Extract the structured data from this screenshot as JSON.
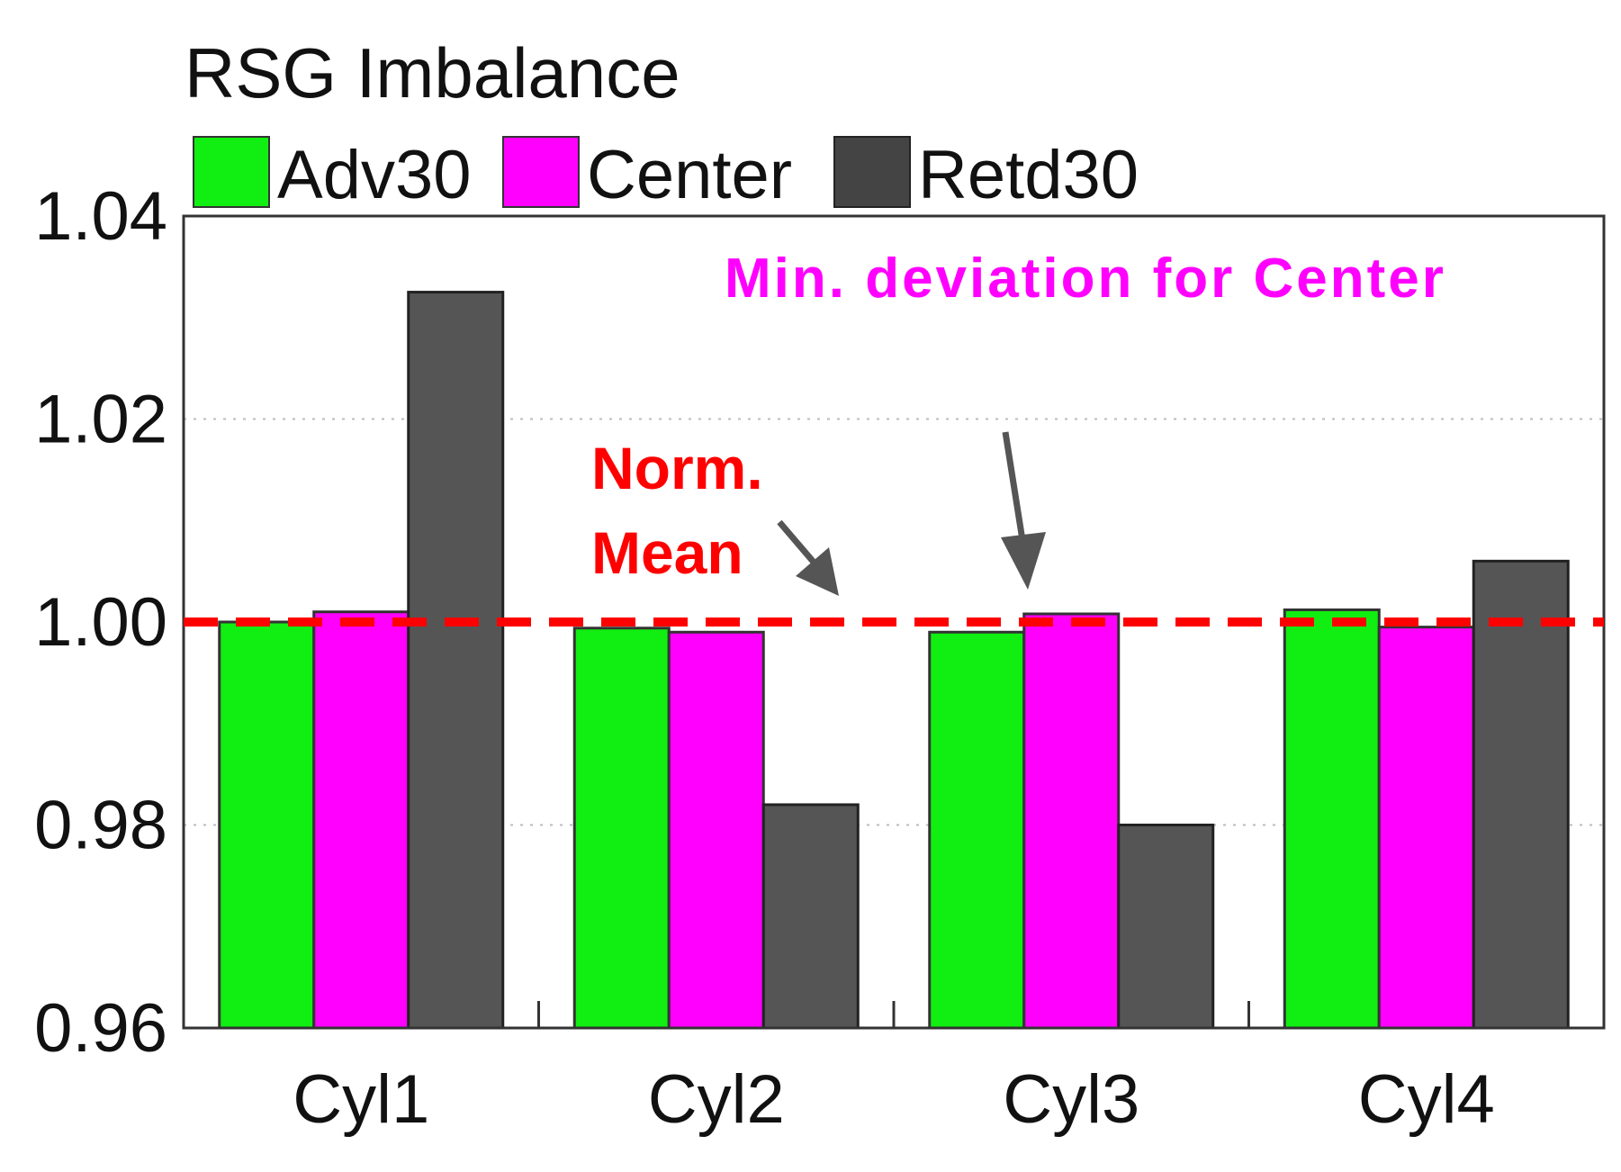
{
  "chart_data": {
    "type": "bar",
    "title": "RSG Imbalance",
    "categories": [
      "Cyl1",
      "Cyl2",
      "Cyl3",
      "Cyl4"
    ],
    "series": [
      {
        "name": "Adv30",
        "color": "#11ee11",
        "values": [
          1.0,
          0.9994,
          0.999,
          1.0012
        ]
      },
      {
        "name": "Center",
        "color": "#ff00ff",
        "values": [
          1.001,
          0.999,
          1.0008,
          0.9995
        ]
      },
      {
        "name": "Retd30",
        "color": "#555555",
        "values": [
          1.0325,
          0.982,
          0.98,
          1.006
        ]
      }
    ],
    "ylim": [
      0.96,
      1.04
    ],
    "yticks": [
      "1.04",
      "1.02",
      "1.00",
      "0.98",
      "0.96"
    ],
    "ytick_values": [
      1.04,
      1.02,
      1.0,
      0.98,
      0.96
    ],
    "reference_line": {
      "value": 1.0,
      "color": "#ff0000",
      "style": "dashed"
    },
    "annotations": {
      "norm_mean_line1": "Norm.",
      "norm_mean_line2": "Mean",
      "min_deviation": "Min. deviation for Center"
    },
    "colors": {
      "annotation_red": "#ff0000",
      "annotation_magenta": "#ff00ff",
      "arrow": "#555555"
    }
  }
}
